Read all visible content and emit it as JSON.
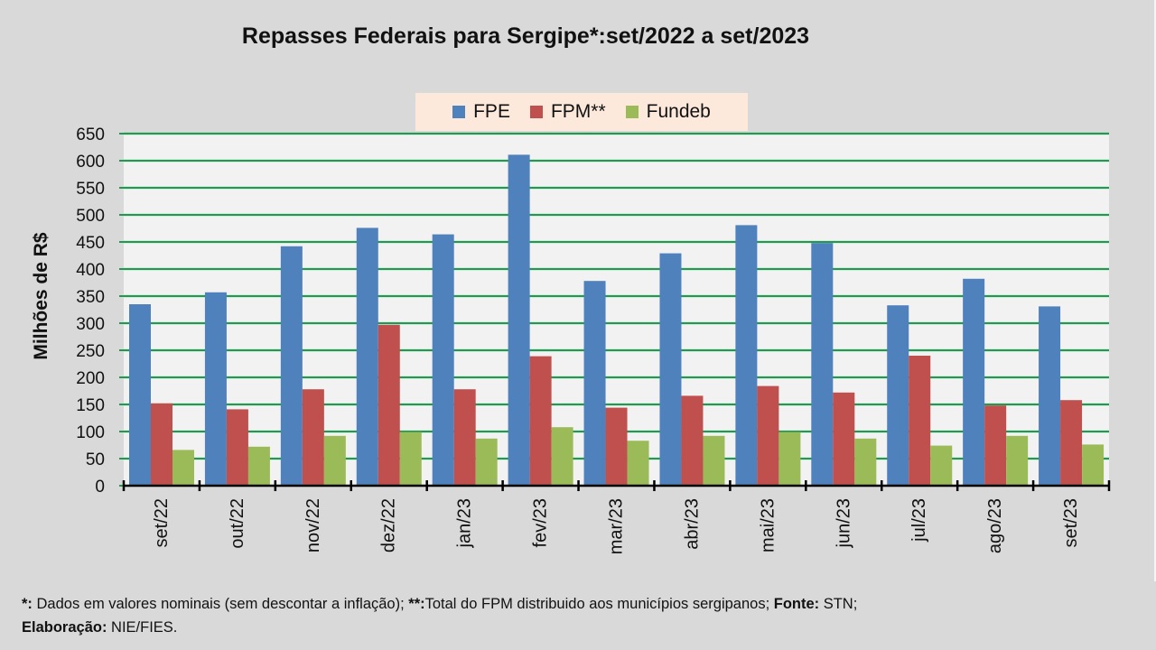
{
  "chart_data": {
    "type": "bar",
    "title": "Repasses Federais para Sergipe*:set/2022 a set/2023",
    "xlabel": "",
    "ylabel": "Milhões de R$",
    "ylim": [
      0,
      650
    ],
    "yticks": [
      0,
      50,
      100,
      150,
      200,
      250,
      300,
      350,
      400,
      450,
      500,
      550,
      600,
      650
    ],
    "grid": true,
    "legend_position": "top-center",
    "categories": [
      "set/22",
      "out/22",
      "nov/22",
      "dez/22",
      "jan/23",
      "fev/23",
      "mar/23",
      "abr/23",
      "mai/23",
      "jun/23",
      "jul/23",
      "ago/23",
      "set/23"
    ],
    "series": [
      {
        "name": "FPE",
        "color": "#4f81bd",
        "values": [
          335,
          357,
          442,
          476,
          464,
          611,
          378,
          429,
          481,
          448,
          333,
          382,
          331
        ]
      },
      {
        "name": "FPM**",
        "color": "#c0504d",
        "values": [
          152,
          141,
          178,
          297,
          178,
          239,
          144,
          166,
          184,
          172,
          240,
          148,
          158
        ]
      },
      {
        "name": "Fundeb",
        "color": "#9bbb59",
        "values": [
          66,
          72,
          92,
          99,
          87,
          108,
          83,
          92,
          99,
          87,
          74,
          92,
          76
        ]
      }
    ]
  },
  "footer": {
    "note1_label": "*:",
    "note1_text": " Dados em valores nominais (sem descontar a inflação); ",
    "note2_label": "**:",
    "note2_text": "Total  do FPM distribuido aos municípios sergipanos; ",
    "source_label": "Fonte:",
    "source_text": " STN;",
    "credit_label": "Elaboração:",
    "credit_text": " NIE/FIES."
  }
}
